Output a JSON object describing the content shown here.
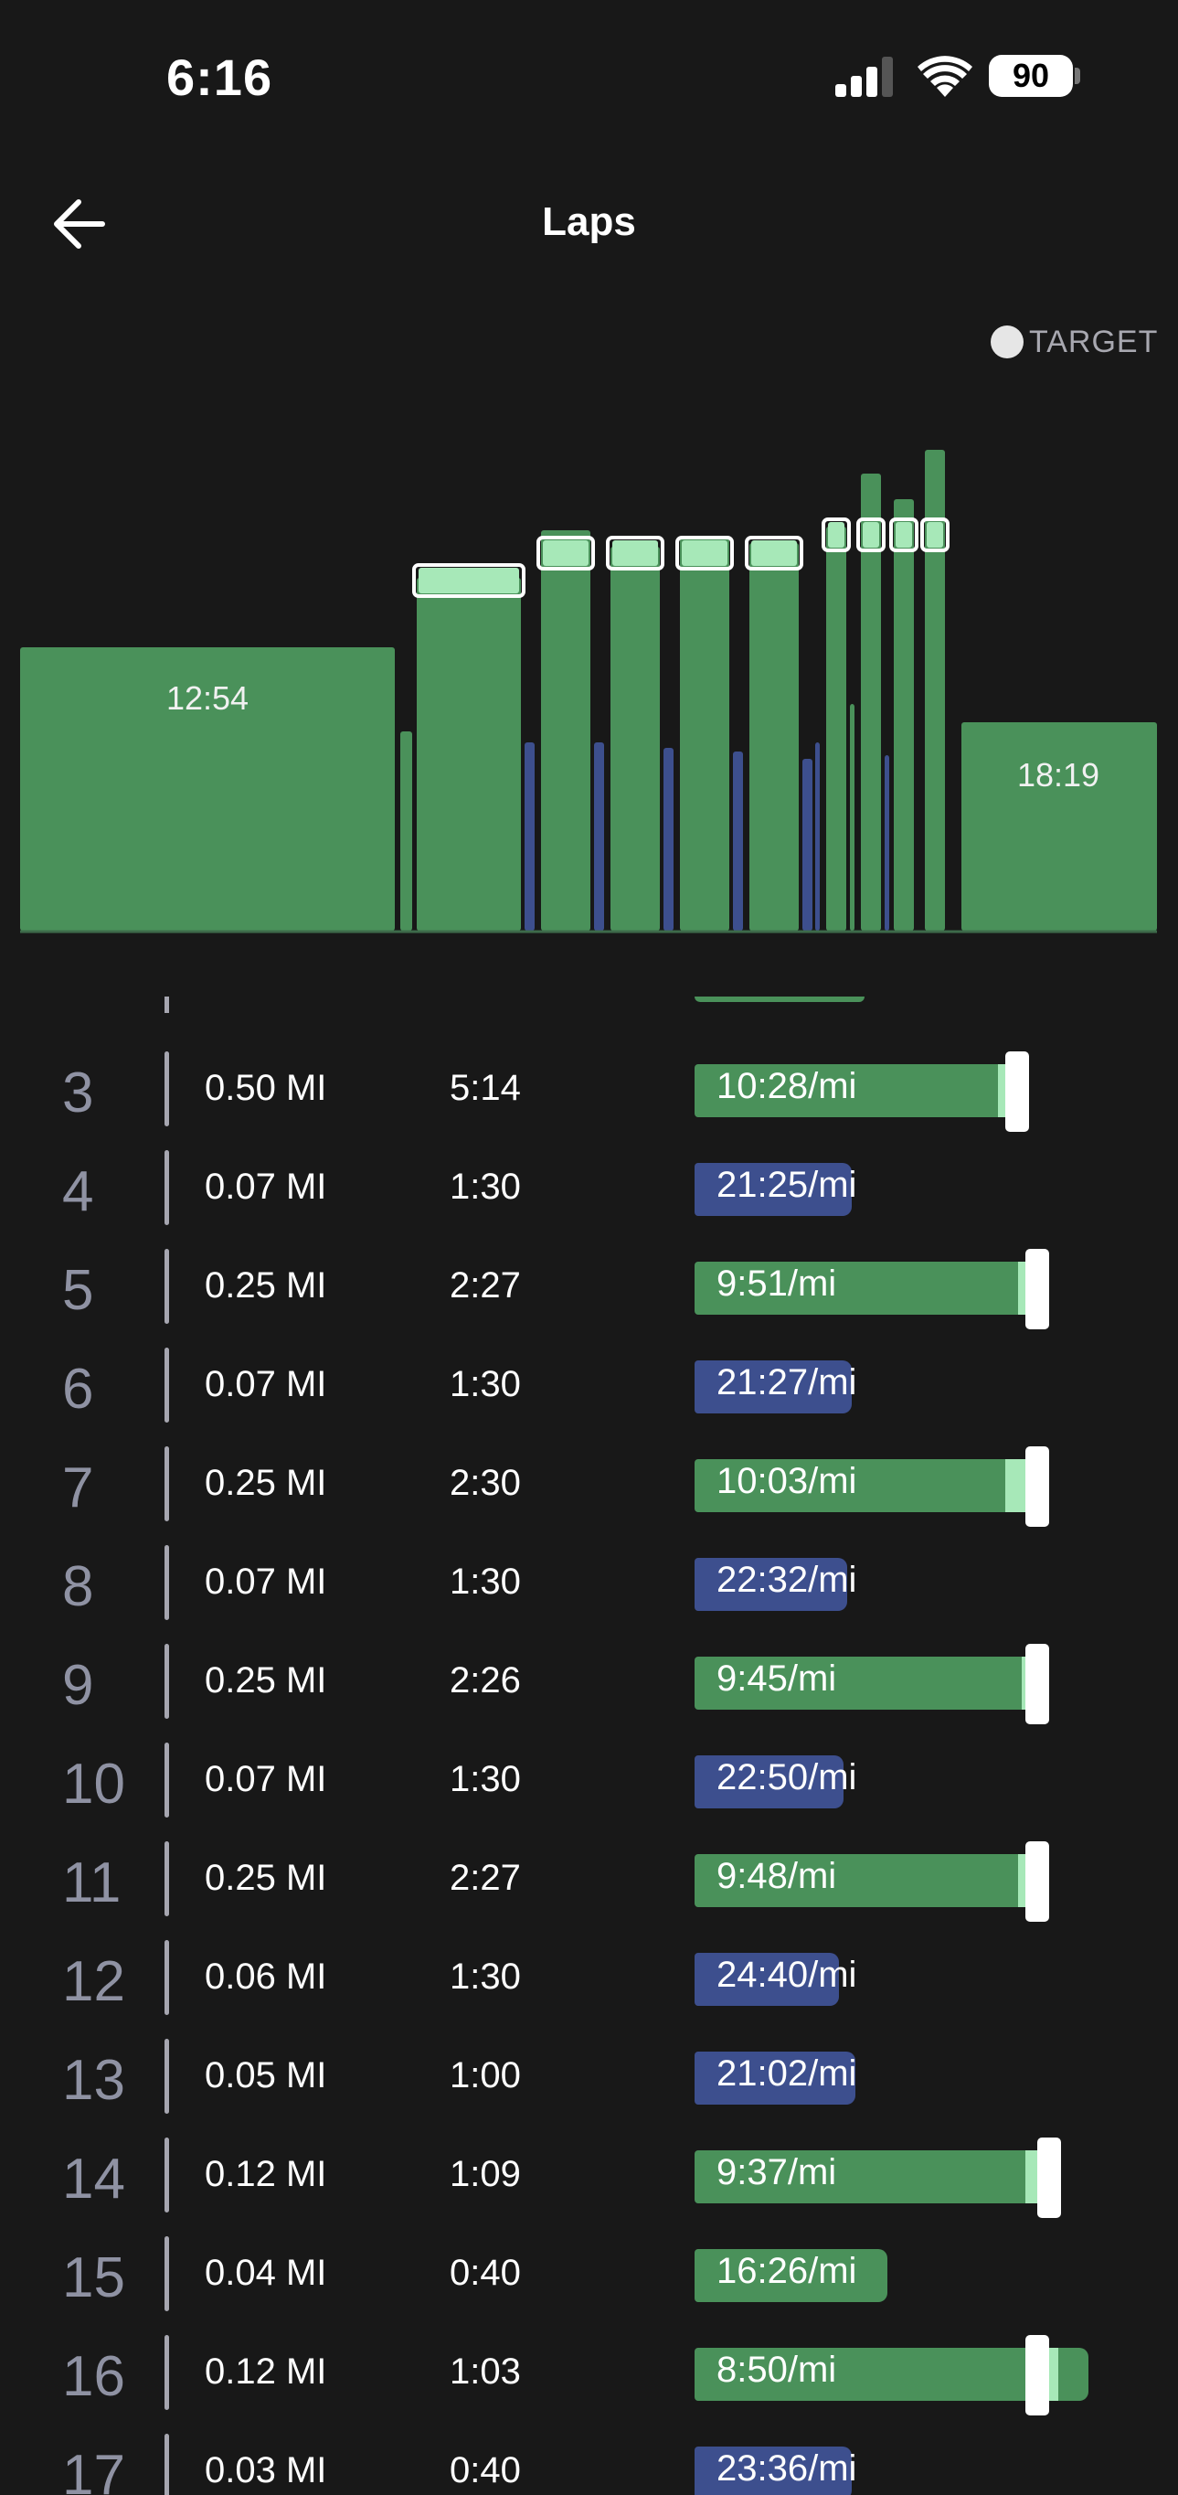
{
  "status_bar": {
    "time": "6:16",
    "battery": "90"
  },
  "header": {
    "title": "Laps"
  },
  "legend": {
    "label": "TARGET"
  },
  "colors": {
    "work": "#4a915a",
    "rest": "#3d4f8e",
    "target": "#a7e8b8",
    "marker": "#ffffff",
    "background": "#181818"
  },
  "chart_data": {
    "type": "bar",
    "x_unit": "elapsed time",
    "y_unit": "pace",
    "laps": [
      {
        "lap": 1,
        "duration_s": 774,
        "label": "12:54",
        "pace": "slow"
      },
      {
        "lap": 2,
        "duration_s": 40
      },
      {
        "lap": 3,
        "duration_s": 314
      },
      {
        "lap": 4,
        "duration_s": 90
      },
      {
        "lap": 5,
        "duration_s": 147
      },
      {
        "lap": 6,
        "duration_s": 90
      },
      {
        "lap": 7,
        "duration_s": 150
      },
      {
        "lap": 8,
        "duration_s": 90
      },
      {
        "lap": 9,
        "duration_s": 146
      },
      {
        "lap": 10,
        "duration_s": 90
      },
      {
        "lap": 11,
        "duration_s": 147
      },
      {
        "lap": 12,
        "duration_s": 90
      },
      {
        "lap": 13,
        "duration_s": 60
      },
      {
        "lap": 14,
        "duration_s": 69
      },
      {
        "lap": 15,
        "duration_s": 40
      },
      {
        "lap": 16,
        "duration_s": 63
      },
      {
        "lap": 17,
        "duration_s": 40
      },
      {
        "lap": 18,
        "duration_s": 1099,
        "label": "18:19"
      }
    ]
  },
  "laps": [
    {
      "num": "3",
      "distance": "0.50 MI",
      "time": "5:14",
      "pace": "10:28/mi",
      "type": "work",
      "bar_fraction": 0.79,
      "target_fraction": 0.8
    },
    {
      "num": "4",
      "distance": "0.07 MI",
      "time": "1:30",
      "pace": "21:25/mi",
      "type": "rest",
      "bar_fraction": 0.39
    },
    {
      "num": "5",
      "distance": "0.25 MI",
      "time": "2:27",
      "pace": "9:51/mi",
      "type": "work",
      "bar_fraction": 0.84,
      "target_fraction": 0.85
    },
    {
      "num": "6",
      "distance": "0.07 MI",
      "time": "1:30",
      "pace": "21:27/mi",
      "type": "rest",
      "bar_fraction": 0.39
    },
    {
      "num": "7",
      "distance": "0.25 MI",
      "time": "2:30",
      "pace": "10:03/mi",
      "type": "work",
      "bar_fraction": 0.81,
      "target_fraction": 0.85
    },
    {
      "num": "8",
      "distance": "0.07 MI",
      "time": "1:30",
      "pace": "22:32/mi",
      "type": "rest",
      "bar_fraction": 0.38
    },
    {
      "num": "9",
      "distance": "0.25 MI",
      "time": "2:26",
      "pace": "9:45/mi",
      "type": "work",
      "bar_fraction": 0.85,
      "target_fraction": 0.85
    },
    {
      "num": "10",
      "distance": "0.07 MI",
      "time": "1:30",
      "pace": "22:50/mi",
      "type": "rest",
      "bar_fraction": 0.37
    },
    {
      "num": "11",
      "distance": "0.25 MI",
      "time": "2:27",
      "pace": "9:48/mi",
      "type": "work",
      "bar_fraction": 0.84,
      "target_fraction": 0.85
    },
    {
      "num": "12",
      "distance": "0.06 MI",
      "time": "1:30",
      "pace": "24:40/mi",
      "type": "rest",
      "bar_fraction": 0.36
    },
    {
      "num": "13",
      "distance": "0.05 MI",
      "time": "1:00",
      "pace": "21:02/mi",
      "type": "rest",
      "bar_fraction": 0.4
    },
    {
      "num": "14",
      "distance": "0.12 MI",
      "time": "1:09",
      "pace": "9:37/mi",
      "type": "work",
      "bar_fraction": 0.86,
      "target_fraction": 0.88
    },
    {
      "num": "15",
      "distance": "0.04 MI",
      "time": "0:40",
      "pace": "16:26/mi",
      "type": "work",
      "bar_fraction": 0.48
    },
    {
      "num": "16",
      "distance": "0.12 MI",
      "time": "1:03",
      "pace": "8:50/mi",
      "type": "work",
      "bar_fraction": 0.98,
      "target_fraction": 0.85
    },
    {
      "num": "17",
      "distance": "0.03 MI",
      "time": "0:40",
      "pace": "23:36/mi",
      "type": "rest",
      "bar_fraction": 0.39
    }
  ]
}
